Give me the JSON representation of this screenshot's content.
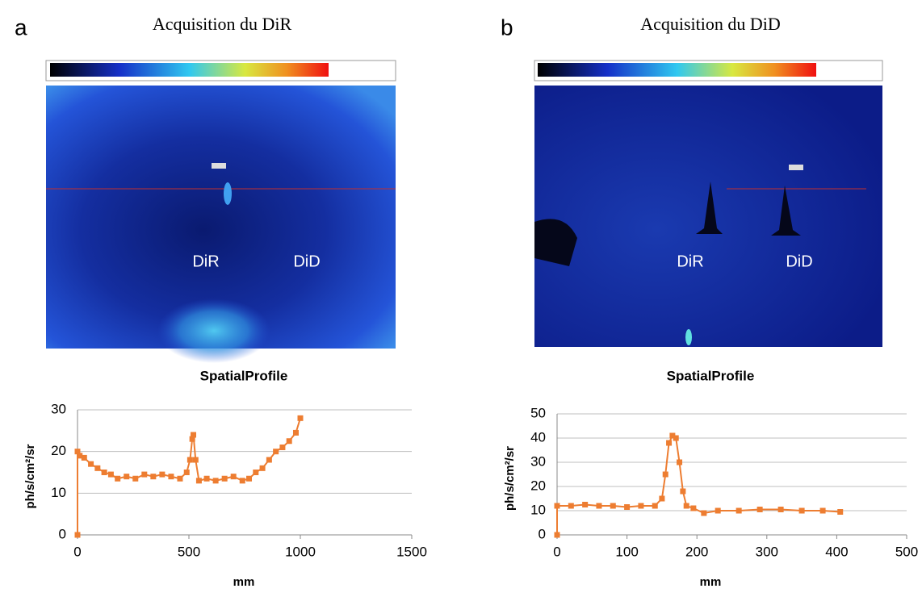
{
  "panels": [
    {
      "letter": "a",
      "title": "Acquisition du DiR",
      "image_labels": [
        "DiR",
        "DiD"
      ]
    },
    {
      "letter": "b",
      "title": "Acquisition du DiD",
      "image_labels": [
        "DiR",
        "DiD"
      ]
    }
  ],
  "chart_data": [
    {
      "type": "line",
      "title": "SpatialProfile",
      "x_label": "mm",
      "y_label": "ph/s/cm²/sr",
      "x": [
        0,
        0,
        10,
        30,
        60,
        90,
        120,
        150,
        180,
        220,
        260,
        300,
        340,
        380,
        420,
        460,
        490,
        505,
        515,
        520,
        530,
        545,
        580,
        620,
        660,
        700,
        740,
        770,
        800,
        830,
        860,
        890,
        920,
        950,
        980,
        1000
      ],
      "series": [
        {
          "color": "#ed7d31",
          "values": [
            0,
            20,
            19,
            18.5,
            17,
            16,
            15,
            14.5,
            13.5,
            14,
            13.5,
            14.5,
            14,
            14.5,
            14,
            13.5,
            15,
            18,
            23,
            24,
            18,
            13,
            13.5,
            13,
            13.5,
            14,
            13,
            13.5,
            15,
            16,
            18,
            20,
            21,
            22.5,
            24.5,
            28
          ]
        }
      ],
      "xlim": [
        0,
        1500
      ],
      "xticks": [
        0,
        500,
        1000,
        1500
      ],
      "ylim": [
        0,
        30
      ],
      "yticks": [
        0,
        10,
        20,
        30
      ],
      "grid": true
    },
    {
      "type": "line",
      "title": "SpatialProfile",
      "x_label": "mm",
      "y_label": "ph/s/cm²/sr",
      "x": [
        0,
        0,
        20,
        40,
        60,
        80,
        100,
        120,
        140,
        150,
        155,
        160,
        165,
        170,
        175,
        180,
        185,
        195,
        210,
        230,
        260,
        290,
        320,
        350,
        380,
        405
      ],
      "series": [
        {
          "color": "#ed7d31",
          "values": [
            0,
            12,
            12,
            12.5,
            12,
            12,
            11.5,
            12,
            12,
            15,
            25,
            38,
            41,
            40,
            30,
            18,
            12,
            11,
            9,
            10,
            10,
            10.5,
            10.5,
            10,
            10,
            9.5
          ]
        }
      ],
      "xlim": [
        0,
        500
      ],
      "xticks": [
        0,
        100,
        200,
        300,
        400,
        500
      ],
      "ylim": [
        0,
        50
      ],
      "yticks": [
        0,
        10,
        20,
        30,
        40,
        50
      ],
      "grid": true
    }
  ]
}
